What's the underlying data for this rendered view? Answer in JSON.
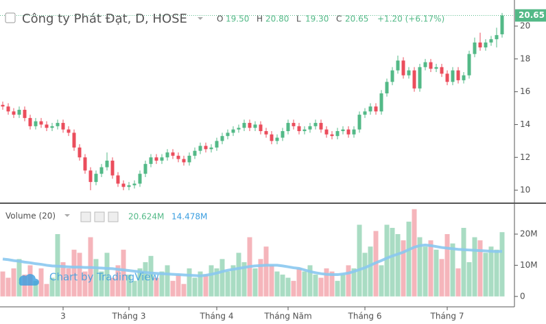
{
  "chart_data": {
    "type": "candlestick",
    "title": "Công ty Phát Đạt, D, HOSE",
    "legend": [
      {
        "key": "O",
        "value": "19.50"
      },
      {
        "key": "H",
        "value": "20.80"
      },
      {
        "key": "L",
        "value": "19.30"
      },
      {
        "key": "C",
        "value": "20.65"
      }
    ],
    "change_label": "+1.20 (+6.17%)",
    "last_label": "20.65",
    "watermark": "Chart by TradingView",
    "categories": [
      null,
      null,
      null,
      null,
      null,
      null,
      null,
      null,
      null,
      null,
      null,
      "3",
      null,
      null,
      null,
      null,
      null,
      null,
      null,
      null,
      null,
      null,
      null,
      "Tháng 3",
      null,
      null,
      null,
      null,
      null,
      null,
      null,
      null,
      null,
      null,
      null,
      null,
      null,
      null,
      null,
      "Tháng 4",
      null,
      null,
      null,
      null,
      null,
      null,
      null,
      null,
      null,
      null,
      null,
      null,
      "Tháng Năm",
      null,
      null,
      null,
      null,
      null,
      null,
      null,
      null,
      null,
      null,
      null,
      null,
      null,
      "Tháng 6",
      null,
      null,
      null,
      null,
      null,
      null,
      null,
      null,
      null,
      null,
      null,
      null,
      null,
      null,
      "Tháng 7",
      null,
      null,
      null,
      null,
      null,
      null,
      null,
      null,
      null,
      null
    ],
    "open": [
      15.2,
      15.1,
      14.8,
      14.6,
      14.9,
      14.4,
      13.9,
      14.2,
      14.0,
      13.8,
      13.9,
      14.1,
      13.7,
      13.5,
      12.6,
      12.0,
      11.2,
      10.5,
      11.0,
      11.4,
      11.8,
      10.9,
      10.4,
      10.2,
      10.3,
      10.4,
      11.0,
      11.6,
      12.0,
      11.8,
      12.0,
      12.3,
      12.1,
      11.9,
      11.7,
      12.1,
      12.4,
      12.7,
      12.5,
      12.6,
      13.0,
      13.3,
      13.5,
      13.7,
      13.8,
      14.1,
      13.8,
      14.0,
      13.6,
      13.4,
      13.0,
      13.2,
      13.6,
      14.1,
      13.9,
      13.6,
      13.7,
      13.9,
      14.1,
      13.7,
      13.4,
      13.3,
      13.6,
      13.7,
      13.4,
      13.7,
      14.6,
      14.8,
      15.1,
      14.8,
      15.9,
      16.6,
      17.3,
      17.9,
      17.0,
      17.3,
      16.2,
      17.5,
      17.8,
      17.4,
      17.5,
      17.1,
      16.6,
      17.3,
      16.7,
      17.0,
      18.3,
      19.0,
      18.7,
      19.0,
      19.2,
      19.5
    ],
    "high": [
      15.4,
      15.3,
      15.0,
      15.1,
      15.1,
      14.6,
      14.4,
      14.4,
      14.2,
      14.1,
      14.3,
      14.3,
      13.9,
      13.7,
      12.8,
      12.2,
      11.4,
      11.2,
      11.6,
      12.3,
      12.0,
      11.1,
      10.6,
      10.5,
      10.6,
      11.2,
      11.8,
      12.2,
      12.2,
      12.2,
      12.5,
      12.5,
      12.3,
      12.1,
      12.3,
      12.6,
      12.9,
      12.9,
      12.8,
      13.2,
      13.5,
      13.7,
      13.9,
      14.0,
      14.3,
      14.3,
      14.2,
      14.2,
      13.8,
      13.6,
      13.4,
      13.8,
      14.3,
      14.3,
      14.1,
      13.9,
      14.1,
      14.3,
      14.3,
      13.9,
      13.6,
      13.8,
      13.9,
      13.9,
      13.9,
      14.8,
      15.0,
      15.3,
      15.3,
      16.1,
      16.8,
      17.5,
      18.2,
      18.1,
      17.5,
      17.5,
      17.7,
      18.0,
      18.0,
      17.7,
      17.7,
      17.3,
      17.5,
      17.5,
      17.2,
      18.5,
      19.3,
      19.6,
      19.2,
      19.4,
      19.9,
      20.8
    ],
    "low": [
      14.9,
      14.6,
      14.4,
      14.4,
      14.2,
      13.7,
      13.7,
      13.8,
      13.6,
      13.6,
      13.7,
      13.5,
      13.3,
      12.4,
      11.8,
      11.0,
      10.0,
      10.3,
      10.8,
      11.2,
      10.7,
      10.2,
      10.0,
      10.0,
      10.1,
      10.2,
      10.8,
      11.4,
      11.6,
      11.6,
      11.8,
      11.9,
      11.7,
      11.5,
      11.5,
      11.9,
      12.2,
      12.3,
      12.3,
      12.4,
      12.8,
      13.1,
      13.3,
      13.5,
      13.6,
      13.6,
      13.6,
      13.4,
      13.2,
      12.8,
      12.8,
      13.0,
      13.4,
      13.7,
      13.4,
      13.4,
      13.5,
      13.7,
      13.5,
      13.2,
      13.1,
      13.1,
      13.4,
      13.2,
      13.2,
      13.5,
      14.4,
      14.6,
      14.6,
      14.6,
      15.7,
      16.4,
      17.1,
      16.8,
      16.8,
      16.0,
      16.0,
      17.3,
      17.2,
      17.2,
      16.9,
      16.4,
      16.4,
      16.5,
      16.5,
      16.8,
      18.1,
      18.5,
      18.5,
      18.8,
      18.7,
      19.3
    ],
    "close": [
      15.1,
      14.8,
      14.6,
      14.9,
      14.4,
      13.9,
      14.2,
      14.0,
      13.8,
      13.9,
      14.1,
      13.7,
      13.5,
      12.6,
      12.0,
      11.2,
      10.5,
      11.0,
      11.4,
      11.8,
      10.9,
      10.4,
      10.2,
      10.3,
      10.4,
      11.0,
      11.6,
      12.0,
      11.8,
      12.0,
      12.3,
      12.1,
      11.9,
      11.7,
      12.1,
      12.4,
      12.7,
      12.5,
      12.6,
      13.0,
      13.3,
      13.5,
      13.7,
      13.8,
      14.1,
      13.8,
      14.0,
      13.6,
      13.4,
      13.0,
      13.2,
      13.6,
      14.1,
      13.9,
      13.6,
      13.7,
      13.9,
      14.1,
      13.7,
      13.4,
      13.3,
      13.6,
      13.7,
      13.4,
      13.7,
      14.6,
      14.8,
      15.1,
      14.8,
      15.9,
      16.6,
      17.3,
      17.9,
      17.0,
      17.3,
      16.2,
      17.5,
      17.8,
      17.4,
      17.5,
      17.1,
      16.6,
      17.3,
      16.7,
      17.0,
      18.3,
      19.0,
      18.7,
      19.0,
      19.2,
      19.45,
      20.65
    ],
    "ylim": [
      9.25,
      21.59
    ],
    "yticks": [
      10,
      12,
      14,
      16,
      18,
      20
    ],
    "up_color": "#53b987",
    "down_color": "#eb4d5c",
    "volume": {
      "title": "Volume (20)",
      "value_label": "20.624M",
      "ma_label": "14.478M",
      "values": [
        8,
        6,
        9,
        12,
        7,
        10,
        5,
        9,
        4,
        6,
        20,
        11,
        9,
        15,
        14,
        8,
        19,
        12,
        8,
        14,
        6,
        10,
        15,
        7,
        5,
        9,
        11,
        13,
        6,
        8,
        10,
        5,
        7,
        4,
        9,
        6,
        8,
        7,
        10,
        9,
        12,
        8,
        10,
        14,
        11,
        19,
        9,
        12,
        16,
        10,
        8,
        7,
        6,
        5,
        9,
        8,
        10,
        7,
        6,
        9,
        8,
        5,
        7,
        10,
        9,
        23,
        14,
        16,
        21,
        10,
        23,
        22,
        20,
        18,
        24,
        28,
        19,
        16,
        18,
        15,
        12,
        20,
        17,
        9,
        22,
        11,
        19,
        18,
        14,
        16,
        15,
        20.624
      ],
      "ma": [
        12,
        11.8,
        11.5,
        11.3,
        11,
        10.8,
        10.5,
        10.3,
        10,
        9.8,
        9.7,
        9.6,
        9.5,
        9.4,
        9.4,
        9.3,
        9.3,
        9.2,
        9.1,
        9.0,
        8.9,
        8.7,
        8.5,
        8.3,
        8.1,
        7.9,
        7.7,
        7.5,
        7.4,
        7.3,
        7.2,
        7.1,
        7.0,
        6.9,
        6.8,
        6.7,
        6.6,
        6.8,
        7.1,
        7.5,
        8,
        8.4,
        8.7,
        9,
        9.3,
        9.6,
        9.8,
        9.9,
        10,
        10,
        10,
        9.8,
        9.5,
        9.2,
        9,
        8.5,
        8,
        7.6,
        7.3,
        7.1,
        7,
        7,
        7.2,
        7.5,
        8,
        8.6,
        9.2,
        10,
        10.8,
        11.5,
        12.3,
        13,
        13.6,
        14.2,
        15,
        15.8,
        16.3,
        16.5,
        16.3,
        16,
        15.7,
        15.5,
        15.3,
        15.1,
        15,
        14.9,
        14.8,
        14.7,
        14.6,
        14.5,
        14.4,
        14.478
      ],
      "ylim": [
        -2.9,
        29.7
      ],
      "yticks": [
        0,
        {
          "value": 10,
          "label": "10M"
        },
        {
          "value": 20,
          "label": "20M"
        }
      ],
      "up_color": "#a9dcc3",
      "down_color": "#f5b5bb",
      "ma_color": "#8ac8f0"
    }
  }
}
